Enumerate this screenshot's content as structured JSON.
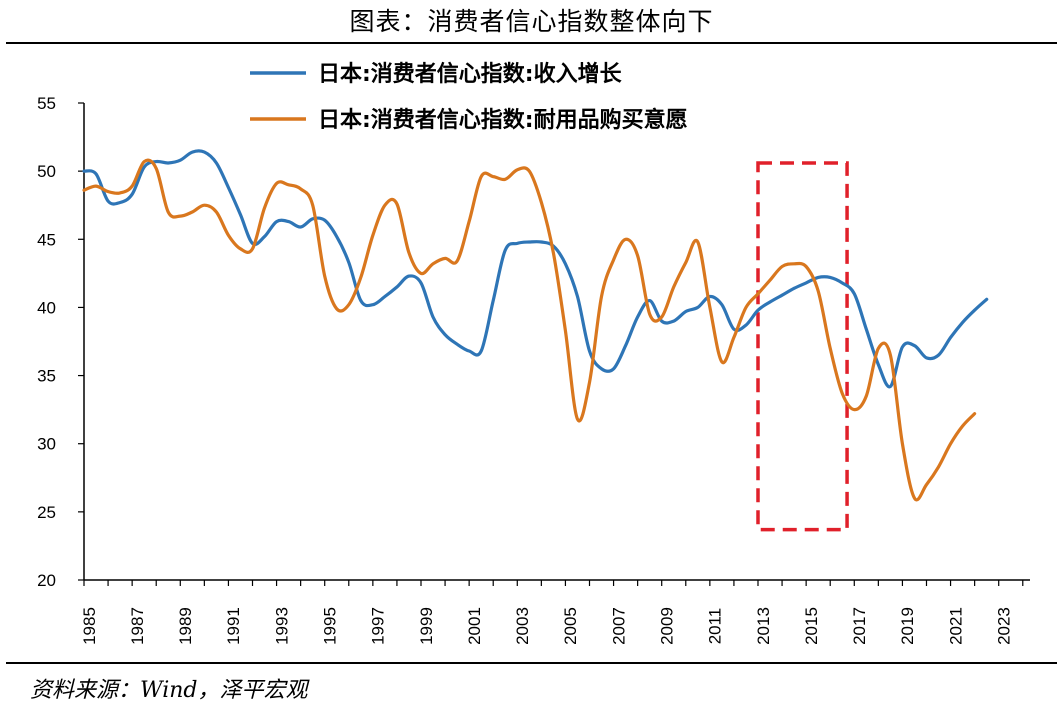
{
  "title": "图表：消费者信心指数整体向下",
  "source": "资料来源：Wind，泽平宏观",
  "colors": {
    "income": "#2E75B6",
    "durables": "#D9771E",
    "highlight": "#E0202A",
    "axis": "#000000"
  },
  "chart_data": {
    "type": "line",
    "ylim": [
      20,
      55
    ],
    "yticks": [
      20,
      25,
      30,
      35,
      40,
      45,
      50,
      55
    ],
    "x_range": [
      1985,
      2024.3
    ],
    "xticks": [
      "1985",
      "1987",
      "1989",
      "1991",
      "1993",
      "1995",
      "1997",
      "1999",
      "2001",
      "2003",
      "2005",
      "2007",
      "2009",
      "2011",
      "2013",
      "2015",
      "2017",
      "2019",
      "2021",
      "2023"
    ],
    "legend_position": "top",
    "series": [
      {
        "name": "日本:消费者信心指数:收入增长",
        "color_key": "income",
        "points": [
          [
            1985.0,
            50.0
          ],
          [
            1985.5,
            49.8
          ],
          [
            1986.0,
            47.8
          ],
          [
            1986.5,
            47.7
          ],
          [
            1987.0,
            48.3
          ],
          [
            1987.5,
            50.3
          ],
          [
            1988.0,
            50.7
          ],
          [
            1988.5,
            50.6
          ],
          [
            1989.0,
            50.8
          ],
          [
            1989.5,
            51.4
          ],
          [
            1990.0,
            51.4
          ],
          [
            1990.5,
            50.6
          ],
          [
            1991.0,
            48.8
          ],
          [
            1991.5,
            46.8
          ],
          [
            1992.0,
            44.7
          ],
          [
            1992.5,
            45.2
          ],
          [
            1993.0,
            46.3
          ],
          [
            1993.5,
            46.3
          ],
          [
            1994.0,
            45.9
          ],
          [
            1994.5,
            46.5
          ],
          [
            1995.0,
            46.4
          ],
          [
            1995.5,
            45.2
          ],
          [
            1996.0,
            43.3
          ],
          [
            1996.5,
            40.5
          ],
          [
            1997.0,
            40.2
          ],
          [
            1997.5,
            40.8
          ],
          [
            1998.0,
            41.5
          ],
          [
            1998.5,
            42.3
          ],
          [
            1999.0,
            41.8
          ],
          [
            1999.5,
            39.3
          ],
          [
            2000.0,
            38.0
          ],
          [
            2000.5,
            37.3
          ],
          [
            2001.0,
            36.8
          ],
          [
            2001.5,
            36.8
          ],
          [
            2002.0,
            40.5
          ],
          [
            2002.5,
            44.2
          ],
          [
            2003.0,
            44.7
          ],
          [
            2003.5,
            44.8
          ],
          [
            2004.0,
            44.8
          ],
          [
            2004.5,
            44.5
          ],
          [
            2005.0,
            43.2
          ],
          [
            2005.5,
            40.8
          ],
          [
            2006.0,
            36.8
          ],
          [
            2006.5,
            35.5
          ],
          [
            2007.0,
            35.5
          ],
          [
            2007.5,
            37.2
          ],
          [
            2008.0,
            39.3
          ],
          [
            2008.5,
            40.5
          ],
          [
            2009.0,
            39.0
          ],
          [
            2009.5,
            39.0
          ],
          [
            2010.0,
            39.7
          ],
          [
            2010.5,
            40.0
          ],
          [
            2011.0,
            40.8
          ],
          [
            2011.5,
            40.2
          ],
          [
            2012.0,
            38.4
          ],
          [
            2012.5,
            38.7
          ],
          [
            2013.0,
            39.8
          ],
          [
            2013.5,
            40.4
          ],
          [
            2014.0,
            40.9
          ],
          [
            2014.5,
            41.4
          ],
          [
            2015.0,
            41.8
          ],
          [
            2015.5,
            42.2
          ],
          [
            2016.0,
            42.2
          ],
          [
            2016.5,
            41.8
          ],
          [
            2017.0,
            41.0
          ],
          [
            2017.5,
            38.4
          ],
          [
            2018.0,
            35.8
          ],
          [
            2018.5,
            34.2
          ],
          [
            2019.0,
            37.1
          ],
          [
            2019.5,
            37.2
          ],
          [
            2020.0,
            36.3
          ],
          [
            2020.5,
            36.5
          ],
          [
            2021.0,
            37.8
          ],
          [
            2021.5,
            38.9
          ],
          [
            2022.0,
            39.8
          ],
          [
            2022.5,
            40.6
          ]
        ]
      },
      {
        "name": "日本:消费者信心指数:耐用品购买意愿",
        "color_key": "durables",
        "points": [
          [
            1985.0,
            48.6
          ],
          [
            1985.5,
            48.9
          ],
          [
            1986.0,
            48.5
          ],
          [
            1986.5,
            48.4
          ],
          [
            1987.0,
            48.9
          ],
          [
            1987.5,
            50.7
          ],
          [
            1988.0,
            50.2
          ],
          [
            1988.5,
            47.0
          ],
          [
            1989.0,
            46.7
          ],
          [
            1989.5,
            47.0
          ],
          [
            1990.0,
            47.5
          ],
          [
            1990.5,
            47.0
          ],
          [
            1991.0,
            45.3
          ],
          [
            1991.5,
            44.3
          ],
          [
            1992.0,
            44.3
          ],
          [
            1992.5,
            47.3
          ],
          [
            1993.0,
            49.1
          ],
          [
            1993.5,
            49.0
          ],
          [
            1994.0,
            48.7
          ],
          [
            1994.5,
            47.5
          ],
          [
            1995.0,
            42.3
          ],
          [
            1995.5,
            39.9
          ],
          [
            1996.0,
            40.2
          ],
          [
            1996.5,
            42.2
          ],
          [
            1997.0,
            45.3
          ],
          [
            1997.5,
            47.5
          ],
          [
            1998.0,
            47.6
          ],
          [
            1998.5,
            44.0
          ],
          [
            1999.0,
            42.5
          ],
          [
            1999.5,
            43.2
          ],
          [
            2000.0,
            43.6
          ],
          [
            2000.5,
            43.4
          ],
          [
            2001.0,
            46.3
          ],
          [
            2001.5,
            49.6
          ],
          [
            2002.0,
            49.6
          ],
          [
            2002.5,
            49.4
          ],
          [
            2003.0,
            50.1
          ],
          [
            2003.5,
            50.0
          ],
          [
            2004.0,
            47.7
          ],
          [
            2004.5,
            44.0
          ],
          [
            2005.0,
            38.3
          ],
          [
            2005.5,
            31.8
          ],
          [
            2006.0,
            34.5
          ],
          [
            2006.5,
            40.8
          ],
          [
            2007.0,
            43.5
          ],
          [
            2007.5,
            45.0
          ],
          [
            2008.0,
            43.8
          ],
          [
            2008.5,
            39.5
          ],
          [
            2009.0,
            39.3
          ],
          [
            2009.5,
            41.5
          ],
          [
            2010.0,
            43.3
          ],
          [
            2010.5,
            44.8
          ],
          [
            2011.0,
            40.0
          ],
          [
            2011.5,
            36.0
          ],
          [
            2012.0,
            37.8
          ],
          [
            2012.5,
            40.0
          ],
          [
            2013.0,
            41.0
          ],
          [
            2013.5,
            42.0
          ],
          [
            2014.0,
            43.0
          ],
          [
            2014.5,
            43.2
          ],
          [
            2015.0,
            43.0
          ],
          [
            2015.5,
            41.2
          ],
          [
            2016.0,
            37.0
          ],
          [
            2016.5,
            33.7
          ],
          [
            2017.0,
            32.5
          ],
          [
            2017.5,
            33.5
          ],
          [
            2018.0,
            37.0
          ],
          [
            2018.5,
            36.5
          ],
          [
            2019.0,
            30.0
          ],
          [
            2019.5,
            26.0
          ],
          [
            2020.0,
            27.0
          ],
          [
            2020.5,
            28.3
          ],
          [
            2021.0,
            30.0
          ],
          [
            2021.5,
            31.3
          ],
          [
            2022.0,
            32.2
          ]
        ]
      }
    ],
    "annotations": [
      {
        "type": "dashed-rectangle",
        "x_from": 2013.0,
        "x_to": 2016.7,
        "y_from": 23.7,
        "y_to": 50.6,
        "color_key": "highlight"
      }
    ]
  }
}
